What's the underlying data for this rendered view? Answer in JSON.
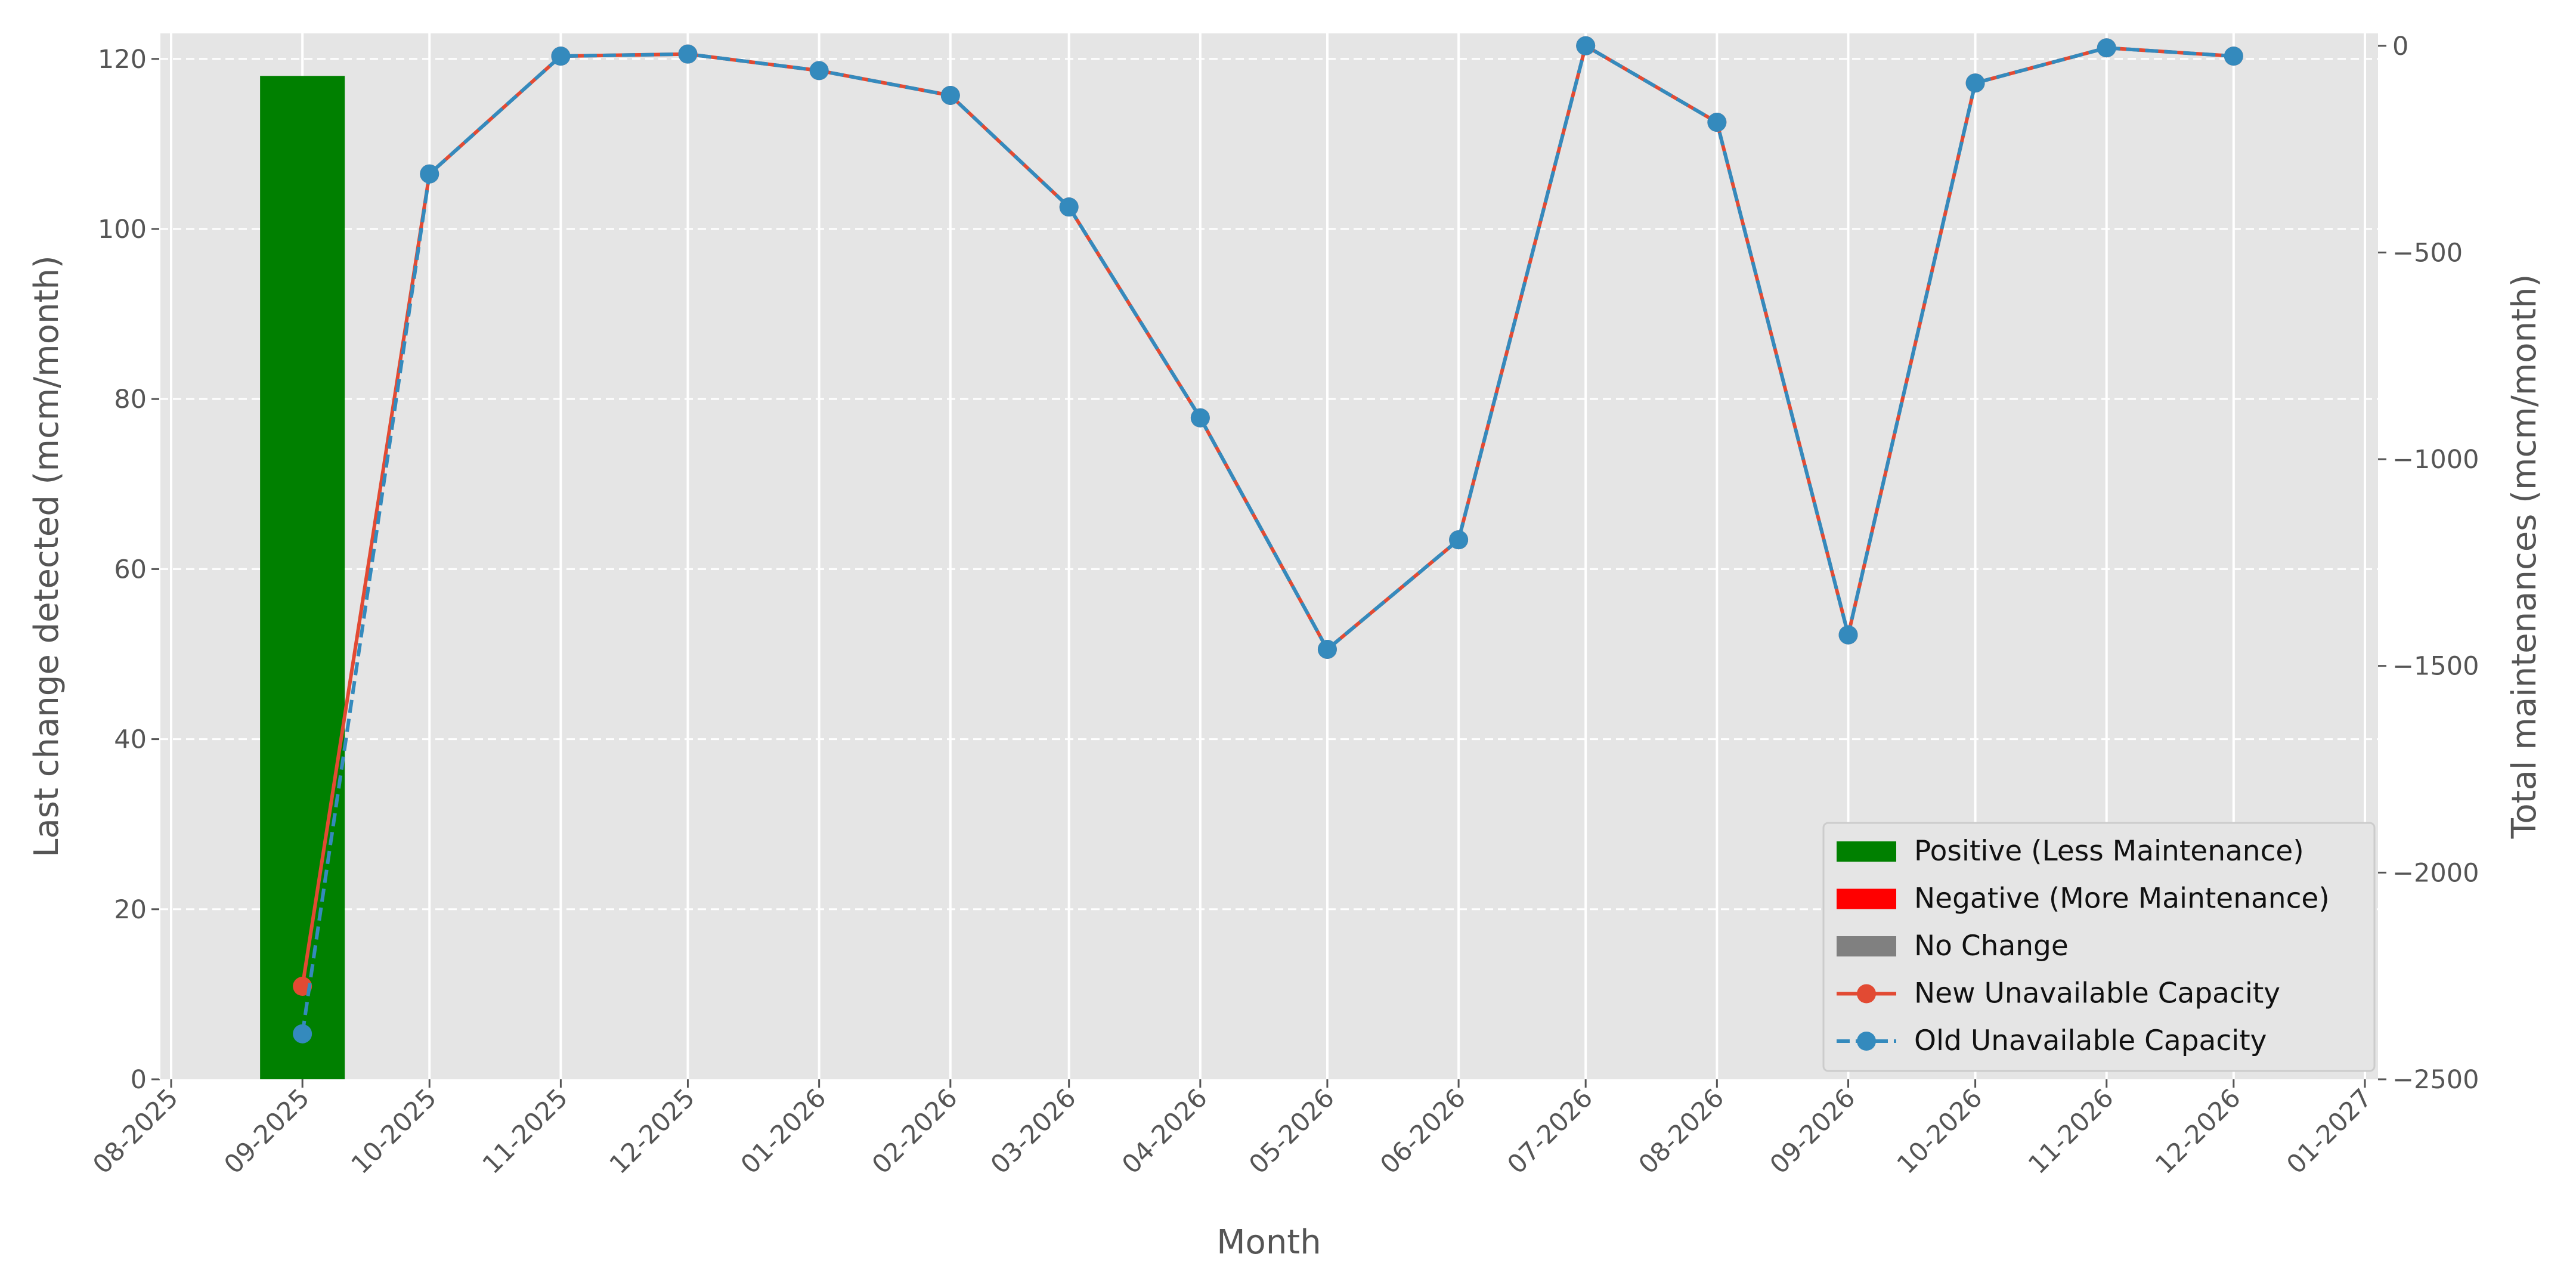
{
  "chart_data": {
    "type": "bar+line",
    "title": "",
    "xlabel": "Month",
    "ylabel_left": "Last change detected (mcm/month)",
    "ylabel_right": "Total maintenances (mcm/month)",
    "x_ticks": [
      "08-2025",
      "09-2025",
      "10-2025",
      "11-2025",
      "12-2025",
      "01-2026",
      "02-2026",
      "03-2026",
      "04-2026",
      "05-2026",
      "06-2026",
      "07-2026",
      "08-2026",
      "09-2026",
      "10-2026",
      "11-2026",
      "12-2026",
      "01-2027"
    ],
    "left_ylim": [
      0,
      123
    ],
    "left_ticks": [
      0,
      20,
      40,
      60,
      80,
      100,
      120
    ],
    "right_ylim": [
      -2500,
      30
    ],
    "right_ticks": [
      0,
      -500,
      -1000,
      -1500,
      -2000,
      -2500
    ],
    "right_tick_labels": [
      "0",
      "−500",
      "−1000",
      "−1500",
      "−2000",
      "−2500"
    ],
    "grid": true,
    "legend_position": "lower-right",
    "colors": {
      "positive": "#008000",
      "negative": "#ff0000",
      "no_change": "#808080",
      "new_line": "#e24a33",
      "old_line": "#348abd",
      "plot_bg": "#e5e5e5"
    },
    "bars": [
      {
        "x": "2025-09-01",
        "value": 118,
        "category": "Positive (Less Maintenance)"
      }
    ],
    "series": [
      {
        "name": "New Unavailable Capacity",
        "style": "solid",
        "x": [
          "2025-09-01",
          "2025-10-01",
          "2025-11-01",
          "2025-12-01",
          "2026-01-01",
          "2026-02-01",
          "2026-03-01",
          "2026-04-01",
          "2026-05-01",
          "2026-06-01",
          "2026-07-01",
          "2026-08-01",
          "2026-09-01",
          "2026-10-01",
          "2026-11-01",
          "2026-12-01"
        ],
        "values": [
          -2275,
          -310,
          -25,
          -20,
          -60,
          -120,
          -390,
          -900,
          -1460,
          -1195,
          0,
          -185,
          -1425,
          -90,
          -5,
          -25
        ]
      },
      {
        "name": "Old Unavailable Capacity",
        "style": "dashed",
        "x": [
          "2025-09-01",
          "2025-10-01",
          "2025-11-01",
          "2025-12-01",
          "2026-01-01",
          "2026-02-01",
          "2026-03-01",
          "2026-04-01",
          "2026-05-01",
          "2026-06-01",
          "2026-07-01",
          "2026-08-01",
          "2026-09-01",
          "2026-10-01",
          "2026-11-01",
          "2026-12-01"
        ],
        "values": [
          -2390,
          -310,
          -25,
          -20,
          -60,
          -120,
          -390,
          -900,
          -1460,
          -1195,
          0,
          -185,
          -1425,
          -90,
          -5,
          -25
        ]
      }
    ],
    "legend": [
      {
        "label": "Positive (Less Maintenance)",
        "kind": "patch",
        "color_key": "positive"
      },
      {
        "label": "Negative (More Maintenance)",
        "kind": "patch",
        "color_key": "negative"
      },
      {
        "label": "No Change",
        "kind": "patch",
        "color_key": "no_change"
      },
      {
        "label": "New Unavailable Capacity",
        "kind": "line-solid",
        "color_key": "new_line"
      },
      {
        "label": "Old Unavailable Capacity",
        "kind": "line-dashed",
        "color_key": "old_line"
      }
    ]
  }
}
